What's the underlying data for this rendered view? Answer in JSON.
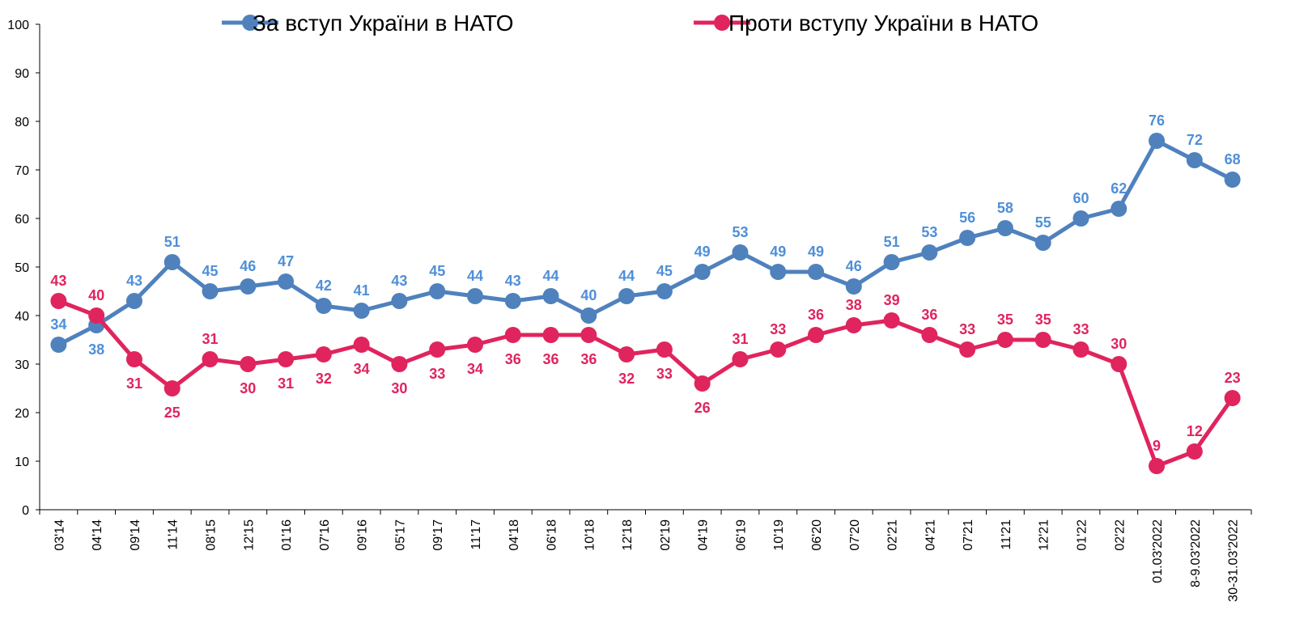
{
  "chart_data": {
    "type": "line",
    "title": "",
    "xlabel": "",
    "ylabel": "",
    "ylim": [
      0,
      100
    ],
    "yticks": [
      0,
      10,
      20,
      30,
      40,
      50,
      60,
      70,
      80,
      90,
      100
    ],
    "grid": false,
    "legend_position": "top",
    "categories": [
      "03'14",
      "04'14",
      "09'14",
      "11'14",
      "08'15",
      "12'15",
      "01'16",
      "07'16",
      "09'16",
      "05'17",
      "09'17",
      "11'17",
      "04'18",
      "06'18",
      "10'18",
      "12'18",
      "02'19",
      "04'19",
      "06'19",
      "10'19",
      "06'20",
      "07'20",
      "02'21",
      "04'21",
      "07'21",
      "11'21",
      "12'21",
      "01'22",
      "02'22",
      "01.03'2022",
      "8-9.03'2022",
      "30-31.03'2022"
    ],
    "series": [
      {
        "name": "За вступ України в НАТО",
        "color": "#4f81bd",
        "label_color": "#4f8fd8",
        "values": [
          34,
          38,
          43,
          51,
          45,
          46,
          47,
          42,
          41,
          43,
          45,
          44,
          43,
          44,
          40,
          44,
          45,
          49,
          53,
          49,
          49,
          46,
          51,
          53,
          56,
          58,
          55,
          60,
          62,
          76,
          72,
          68
        ],
        "label_side": [
          "above",
          "below",
          "above",
          "above",
          "above",
          "above",
          "above",
          "above",
          "above",
          "above",
          "above",
          "above",
          "above",
          "above",
          "above",
          "above",
          "above",
          "above",
          "above",
          "above",
          "above",
          "above",
          "above",
          "above",
          "above",
          "above",
          "above",
          "above",
          "above",
          "above",
          "above",
          "above"
        ]
      },
      {
        "name": "Проти вступу України в НАТО",
        "color": "#e0245e",
        "label_color": "#e0245e",
        "values": [
          43,
          40,
          31,
          25,
          31,
          30,
          31,
          32,
          34,
          30,
          33,
          34,
          36,
          36,
          36,
          32,
          33,
          26,
          31,
          33,
          36,
          38,
          39,
          36,
          33,
          35,
          35,
          33,
          30,
          9,
          12,
          23
        ],
        "label_side": [
          "above",
          "above",
          "below",
          "below",
          "above",
          "below",
          "below",
          "below",
          "below",
          "below",
          "below",
          "below",
          "below",
          "below",
          "below",
          "below",
          "below",
          "below",
          "above",
          "above",
          "above",
          "above",
          "above",
          "above",
          "above",
          "above",
          "above",
          "above",
          "above",
          "above",
          "above",
          "above"
        ]
      }
    ]
  }
}
